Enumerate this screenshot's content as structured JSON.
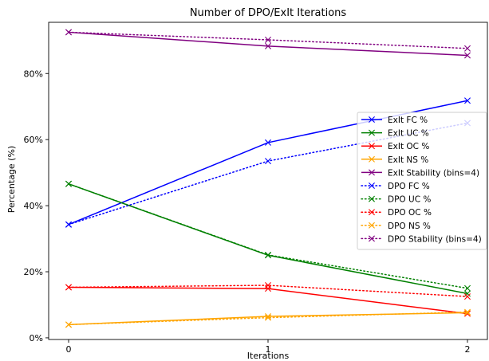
{
  "chart_data": {
    "type": "line",
    "title": "Number of DPO/ExIt Iterations",
    "xlabel": "Iterations",
    "ylabel": "Percentage (%)",
    "x": [
      0,
      1,
      2
    ],
    "x_tick_labels": [
      "0",
      "1",
      "2"
    ],
    "xlim": [
      -0.1,
      2.1
    ],
    "ylim": [
      -0.5,
      95.5
    ],
    "y_ticks": [
      0,
      20,
      40,
      60,
      80
    ],
    "y_tick_labels": [
      "0%",
      "20%",
      "40%",
      "60%",
      "80%"
    ],
    "grid": false,
    "legend_position": "center-right",
    "series": [
      {
        "name": "ExIt FC %",
        "values": [
          34.3,
          59.1,
          71.8
        ],
        "color": "#0000ff",
        "style": "solid"
      },
      {
        "name": "ExIt UC %",
        "values": [
          46.6,
          25.0,
          13.4
        ],
        "color": "#008000",
        "style": "solid"
      },
      {
        "name": "ExIt OC %",
        "values": [
          15.3,
          14.9,
          7.3
        ],
        "color": "#ff0000",
        "style": "solid"
      },
      {
        "name": "ExIt NS %",
        "values": [
          4.0,
          6.5,
          7.6
        ],
        "color": "#ffa500",
        "style": "solid"
      },
      {
        "name": "ExIt Stability (bins=4)",
        "values": [
          92.5,
          88.3,
          85.5
        ],
        "color": "#800080",
        "style": "solid"
      },
      {
        "name": "DPO FC %",
        "values": [
          34.3,
          53.5,
          65.0
        ],
        "color": "#0000ff",
        "style": "dotted"
      },
      {
        "name": "DPO UC %",
        "values": [
          46.6,
          25.1,
          15.0
        ],
        "color": "#008000",
        "style": "dotted"
      },
      {
        "name": "DPO OC %",
        "values": [
          15.3,
          15.9,
          12.5
        ],
        "color": "#ff0000",
        "style": "dotted"
      },
      {
        "name": "DPO NS %",
        "values": [
          4.0,
          6.1,
          7.8
        ],
        "color": "#ffa500",
        "style": "dotted"
      },
      {
        "name": "DPO Stability (bins=4)",
        "values": [
          92.5,
          90.2,
          87.6
        ],
        "color": "#800080",
        "style": "dotted"
      }
    ]
  }
}
